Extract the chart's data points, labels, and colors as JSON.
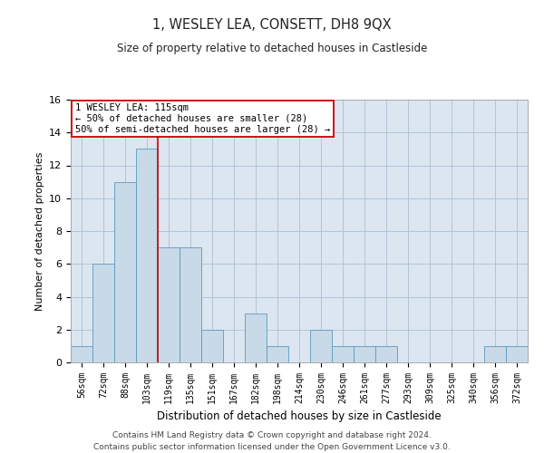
{
  "title": "1, WESLEY LEA, CONSETT, DH8 9QX",
  "subtitle": "Size of property relative to detached houses in Castleside",
  "xlabel": "Distribution of detached houses by size in Castleside",
  "ylabel": "Number of detached properties",
  "bin_labels": [
    "56sqm",
    "72sqm",
    "88sqm",
    "103sqm",
    "119sqm",
    "135sqm",
    "151sqm",
    "167sqm",
    "182sqm",
    "198sqm",
    "214sqm",
    "230sqm",
    "246sqm",
    "261sqm",
    "277sqm",
    "293sqm",
    "309sqm",
    "325sqm",
    "340sqm",
    "356sqm",
    "372sqm"
  ],
  "bar_heights": [
    1,
    6,
    11,
    13,
    7,
    7,
    2,
    0,
    3,
    1,
    0,
    2,
    1,
    1,
    1,
    0,
    0,
    0,
    0,
    1,
    1
  ],
  "bar_color": "#c8d9e8",
  "bar_edge_color": "#5a9abf",
  "vline_x": 3.5,
  "vline_label": "1 WESLEY LEA: 115sqm",
  "annotation_line1": "← 50% of detached houses are smaller (28)",
  "annotation_line2": "50% of semi-detached houses are larger (28) →",
  "annotation_box_color": "#ffffff",
  "annotation_box_edge": "#cc0000",
  "grid_color": "#b0c4d8",
  "background_color": "#dce6f0",
  "ylim": [
    0,
    16
  ],
  "yticks": [
    0,
    2,
    4,
    6,
    8,
    10,
    12,
    14,
    16
  ],
  "footer1": "Contains HM Land Registry data © Crown copyright and database right 2024.",
  "footer2": "Contains public sector information licensed under the Open Government Licence v3.0."
}
